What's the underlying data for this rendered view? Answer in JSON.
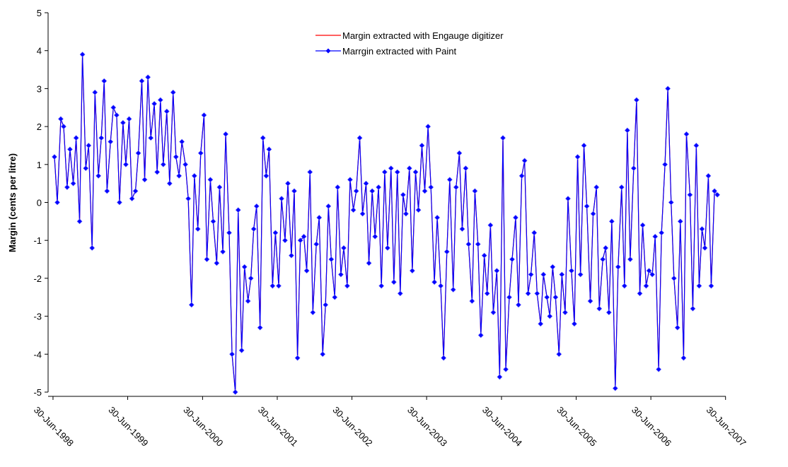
{
  "chart_data": {
    "type": "line",
    "y_label": "Margin (cents per litre)",
    "x": [
      "1998-07-07",
      "1998-07-21",
      "1998-08-07",
      "1998-08-21",
      "1998-09-07",
      "1998-09-21",
      "1998-10-07",
      "1998-10-21",
      "1998-11-07",
      "1998-11-21",
      "1998-12-07",
      "1998-12-21",
      "1999-01-07",
      "1999-01-21",
      "1999-02-07",
      "1999-02-21",
      "1999-03-07",
      "1999-03-21",
      "1999-04-07",
      "1999-04-21",
      "1999-05-07",
      "1999-05-21",
      "1999-06-07",
      "1999-06-21",
      "1999-07-07",
      "1999-07-21",
      "1999-08-07",
      "1999-08-21",
      "1999-09-07",
      "1999-09-21",
      "1999-10-07",
      "1999-10-21",
      "1999-11-07",
      "1999-11-21",
      "1999-12-07",
      "1999-12-21",
      "2000-01-07",
      "2000-01-21",
      "2000-02-07",
      "2000-02-21",
      "2000-03-07",
      "2000-03-21",
      "2000-04-07",
      "2000-04-21",
      "2000-05-07",
      "2000-05-21",
      "2000-06-07",
      "2000-06-21",
      "2000-07-07",
      "2000-07-21",
      "2000-08-07",
      "2000-08-21",
      "2000-09-07",
      "2000-09-21",
      "2000-10-07",
      "2000-10-21",
      "2000-11-07",
      "2000-11-21",
      "2000-12-07",
      "2000-12-21",
      "2001-01-07",
      "2001-01-21",
      "2001-02-07",
      "2001-02-21",
      "2001-03-07",
      "2001-03-21",
      "2001-04-07",
      "2001-04-21",
      "2001-05-07",
      "2001-05-21",
      "2001-06-07",
      "2001-06-21",
      "2001-07-07",
      "2001-07-21",
      "2001-08-07",
      "2001-08-21",
      "2001-09-07",
      "2001-09-21",
      "2001-10-07",
      "2001-10-21",
      "2001-11-07",
      "2001-11-21",
      "2001-12-07",
      "2001-12-21",
      "2002-01-07",
      "2002-01-21",
      "2002-02-07",
      "2002-02-21",
      "2002-03-07",
      "2002-03-21",
      "2002-04-07",
      "2002-04-21",
      "2002-05-07",
      "2002-05-21",
      "2002-06-07",
      "2002-06-21",
      "2002-07-07",
      "2002-07-21",
      "2002-08-07",
      "2002-08-21",
      "2002-09-07",
      "2002-09-21",
      "2002-10-07",
      "2002-10-21",
      "2002-11-07",
      "2002-11-21",
      "2002-12-07",
      "2002-12-21",
      "2003-01-07",
      "2003-01-21",
      "2003-02-07",
      "2003-02-21",
      "2003-03-07",
      "2003-03-21",
      "2003-04-07",
      "2003-04-21",
      "2003-05-07",
      "2003-05-21",
      "2003-06-07",
      "2003-06-21",
      "2003-07-07",
      "2003-07-21",
      "2003-08-07",
      "2003-08-21",
      "2003-09-07",
      "2003-09-21",
      "2003-10-07",
      "2003-10-21",
      "2003-11-07",
      "2003-11-21",
      "2003-12-07",
      "2003-12-21",
      "2004-01-07",
      "2004-01-21",
      "2004-02-07",
      "2004-02-21",
      "2004-03-07",
      "2004-03-21",
      "2004-04-07",
      "2004-04-21",
      "2004-05-07",
      "2004-05-21",
      "2004-06-07",
      "2004-06-21",
      "2004-07-07",
      "2004-07-21",
      "2004-08-07",
      "2004-08-21",
      "2004-09-07",
      "2004-09-21",
      "2004-10-07",
      "2004-10-21",
      "2004-11-07",
      "2004-11-21",
      "2004-12-07",
      "2004-12-21",
      "2005-01-07",
      "2005-01-21",
      "2005-02-07",
      "2005-02-21",
      "2005-03-07",
      "2005-03-21",
      "2005-04-07",
      "2005-04-21",
      "2005-05-07",
      "2005-05-21",
      "2005-06-07",
      "2005-06-21",
      "2005-07-07",
      "2005-07-21",
      "2005-08-07",
      "2005-08-21",
      "2005-09-07",
      "2005-09-21",
      "2005-10-07",
      "2005-10-21",
      "2005-11-07",
      "2005-11-21",
      "2005-12-07",
      "2005-12-21",
      "2006-01-07",
      "2006-01-21",
      "2006-02-07",
      "2006-02-21",
      "2006-03-07",
      "2006-03-21",
      "2006-04-07",
      "2006-04-21",
      "2006-05-07",
      "2006-05-21",
      "2006-06-07",
      "2006-06-21",
      "2006-07-07",
      "2006-07-21",
      "2006-08-07",
      "2006-08-21",
      "2006-09-07",
      "2006-09-21",
      "2006-10-07",
      "2006-10-21",
      "2006-11-07",
      "2006-11-21",
      "2006-12-07",
      "2006-12-21",
      "2007-01-07",
      "2007-01-21",
      "2007-02-07",
      "2007-02-21",
      "2007-03-07",
      "2007-03-21",
      "2007-04-07",
      "2007-04-21",
      "2007-05-07",
      "2007-05-21"
    ],
    "series": [
      {
        "name": "Margin extracted with Engauge digitizer",
        "color": "#ff0000",
        "marker": false,
        "values": [
          1.2,
          0.0,
          2.2,
          2.0,
          0.4,
          1.4,
          0.5,
          1.7,
          -0.5,
          3.9,
          0.9,
          1.5,
          -1.2,
          2.9,
          0.7,
          1.7,
          3.2,
          0.3,
          1.6,
          2.5,
          2.3,
          0.0,
          2.1,
          1.0,
          2.2,
          0.1,
          0.3,
          1.3,
          3.2,
          0.6,
          3.3,
          1.7,
          2.6,
          0.8,
          2.7,
          1.0,
          2.4,
          0.5,
          2.9,
          1.2,
          0.7,
          1.6,
          1.0,
          0.1,
          -2.7,
          0.7,
          -0.7,
          1.3,
          2.3,
          -1.5,
          0.6,
          -0.5,
          -1.6,
          0.4,
          -1.3,
          1.8,
          -0.8,
          -4.0,
          -5.0,
          -0.2,
          -3.9,
          -1.7,
          -2.6,
          -2.0,
          -0.7,
          -0.1,
          -3.3,
          1.7,
          0.7,
          1.4,
          -2.2,
          -0.8,
          -2.2,
          0.1,
          -1.0,
          0.5,
          -1.4,
          0.3,
          -4.1,
          -1.0,
          -0.9,
          -1.8,
          0.8,
          -2.9,
          -1.1,
          -0.4,
          -4.0,
          -2.7,
          -0.1,
          -1.5,
          -2.5,
          0.4,
          -1.9,
          -1.2,
          -2.2,
          0.6,
          -0.2,
          0.3,
          1.7,
          -0.3,
          0.5,
          -1.6,
          0.3,
          -0.9,
          0.4,
          -2.2,
          0.8,
          -1.2,
          0.9,
          -2.1,
          0.8,
          -2.4,
          0.2,
          -0.3,
          0.9,
          -1.8,
          0.8,
          -0.2,
          1.5,
          0.3,
          2.0,
          0.4,
          -2.1,
          -0.4,
          -2.2,
          -4.1,
          -1.3,
          0.6,
          -2.3,
          0.4,
          1.3,
          -0.7,
          0.9,
          -1.1,
          -2.6,
          0.3,
          -1.1,
          -3.5,
          -1.4,
          -2.4,
          -0.6,
          -2.9,
          -1.8,
          -4.6,
          1.7,
          -4.4,
          -2.5,
          -1.5,
          -0.4,
          -2.7,
          0.7,
          1.1,
          -2.4,
          -1.9,
          -0.8,
          -2.4,
          -3.2,
          -1.9,
          -2.5,
          -3.0,
          -1.7,
          -2.5,
          -4.0,
          -1.9,
          -2.9,
          0.1,
          -1.8,
          -3.2,
          1.2,
          -1.9,
          1.5,
          -0.1,
          -2.6,
          -0.3,
          0.4,
          -2.8,
          -1.5,
          -1.2,
          -2.9,
          -0.5,
          -4.9,
          -1.7,
          0.4,
          -2.2,
          1.9,
          -1.5,
          0.9,
          2.7,
          -2.4,
          -0.6,
          -2.2,
          -1.8,
          -1.9,
          -0.9,
          -4.4,
          -0.8,
          1.0,
          3.0,
          0.0,
          -2.0,
          -3.3,
          -0.5,
          -4.1,
          1.8,
          0.2,
          -2.8,
          1.5,
          -2.2,
          -0.7,
          -1.2,
          0.7,
          -2.2,
          0.3,
          0.2
        ]
      },
      {
        "name": "Marrgin extracted with Paint",
        "color": "#0000ff",
        "marker": true,
        "values": [
          1.2,
          0.0,
          2.2,
          2.0,
          0.4,
          1.4,
          0.5,
          1.7,
          -0.5,
          3.9,
          0.9,
          1.5,
          -1.2,
          2.9,
          0.7,
          1.7,
          3.2,
          0.3,
          1.6,
          2.5,
          2.3,
          0.0,
          2.1,
          1.0,
          2.2,
          0.1,
          0.3,
          1.3,
          3.2,
          0.6,
          3.3,
          1.7,
          2.6,
          0.8,
          2.7,
          1.0,
          2.4,
          0.5,
          2.9,
          1.2,
          0.7,
          1.6,
          1.0,
          0.1,
          -2.7,
          0.7,
          -0.7,
          1.3,
          2.3,
          -1.5,
          0.6,
          -0.5,
          -1.6,
          0.4,
          -1.3,
          1.8,
          -0.8,
          -4.0,
          -5.0,
          -0.2,
          -3.9,
          -1.7,
          -2.6,
          -2.0,
          -0.7,
          -0.1,
          -3.3,
          1.7,
          0.7,
          1.4,
          -2.2,
          -0.8,
          -2.2,
          0.1,
          -1.0,
          0.5,
          -1.4,
          0.3,
          -4.1,
          -1.0,
          -0.9,
          -1.8,
          0.8,
          -2.9,
          -1.1,
          -0.4,
          -4.0,
          -2.7,
          -0.1,
          -1.5,
          -2.5,
          0.4,
          -1.9,
          -1.2,
          -2.2,
          0.6,
          -0.2,
          0.3,
          1.7,
          -0.3,
          0.5,
          -1.6,
          0.3,
          -0.9,
          0.4,
          -2.2,
          0.8,
          -1.2,
          0.9,
          -2.1,
          0.8,
          -2.4,
          0.2,
          -0.3,
          0.9,
          -1.8,
          0.8,
          -0.2,
          1.5,
          0.3,
          2.0,
          0.4,
          -2.1,
          -0.4,
          -2.2,
          -4.1,
          -1.3,
          0.6,
          -2.3,
          0.4,
          1.3,
          -0.7,
          0.9,
          -1.1,
          -2.6,
          0.3,
          -1.1,
          -3.5,
          -1.4,
          -2.4,
          -0.6,
          -2.9,
          -1.8,
          -4.6,
          1.7,
          -4.4,
          -2.5,
          -1.5,
          -0.4,
          -2.7,
          0.7,
          1.1,
          -2.4,
          -1.9,
          -0.8,
          -2.4,
          -3.2,
          -1.9,
          -2.5,
          -3.0,
          -1.7,
          -2.5,
          -4.0,
          -1.9,
          -2.9,
          0.1,
          -1.8,
          -3.2,
          1.2,
          -1.9,
          1.5,
          -0.1,
          -2.6,
          -0.3,
          0.4,
          -2.8,
          -1.5,
          -1.2,
          -2.9,
          -0.5,
          -4.9,
          -1.7,
          0.4,
          -2.2,
          1.9,
          -1.5,
          0.9,
          2.7,
          -2.4,
          -0.6,
          -2.2,
          -1.8,
          -1.9,
          -0.9,
          -4.4,
          -0.8,
          1.0,
          3.0,
          0.0,
          -2.0,
          -3.3,
          -0.5,
          -4.1,
          1.8,
          0.2,
          -2.8,
          1.5,
          -2.2,
          -0.7,
          -1.2,
          0.7,
          -2.2,
          0.3,
          0.2
        ]
      }
    ],
    "xlim": [
      "1998-06-06",
      "2007-07-01"
    ],
    "xticks": [
      {
        "value": "1998-06-30",
        "label": "30-Jun-1998"
      },
      {
        "value": "1999-06-30",
        "label": "30-Jun-1999"
      },
      {
        "value": "2000-06-30",
        "label": "30-Jun-2000"
      },
      {
        "value": "2001-06-30",
        "label": "30-Jun-2001"
      },
      {
        "value": "2002-06-30",
        "label": "30-Jun-2002"
      },
      {
        "value": "2003-06-30",
        "label": "30-Jun-2003"
      },
      {
        "value": "2004-06-30",
        "label": "30-Jun-2004"
      },
      {
        "value": "2005-06-30",
        "label": "30-Jun-2005"
      },
      {
        "value": "2006-06-30",
        "label": "30-Jun-2006"
      },
      {
        "value": "2007-06-30",
        "label": "30-Jun-2007"
      }
    ],
    "ylim": [
      -5,
      5
    ],
    "yticks": [
      -5,
      -4,
      -3,
      -2,
      -1,
      0,
      1,
      2,
      3,
      4,
      5
    ],
    "grid": false,
    "legend": "top"
  }
}
